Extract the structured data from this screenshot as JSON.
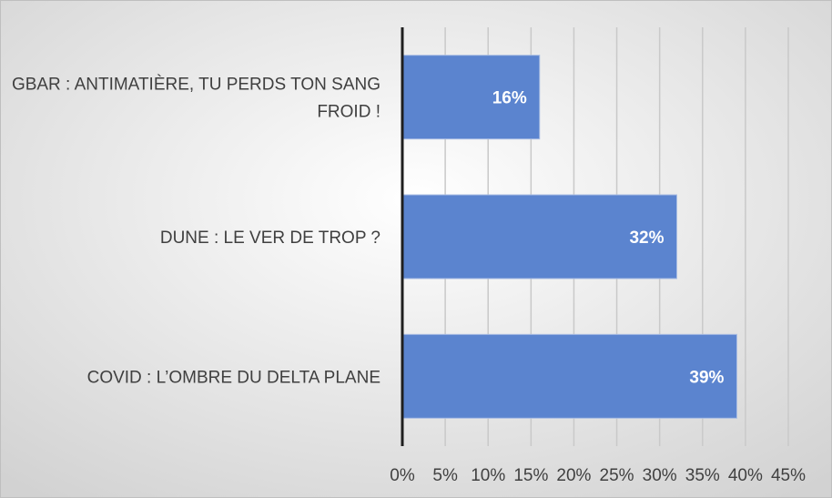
{
  "chart_data": {
    "type": "bar",
    "orientation": "horizontal",
    "categories": [
      "GBAR : ANTIMATIÈRE, TU PERDS TON SANG FROID !",
      "DUNE : LE VER DE TROP ?",
      "COVID : L’OMBRE DU DELTA PLANE"
    ],
    "category_lines": [
      [
        "GBAR : ANTIMATIÈRE, TU PERDS TON SANG",
        "FROID !"
      ],
      [
        "DUNE : LE VER DE TROP ?"
      ],
      [
        "COVID : L’OMBRE DU DELTA PLANE"
      ]
    ],
    "values": [
      16,
      32,
      39
    ],
    "data_labels": [
      "16%",
      "32%",
      "39%"
    ],
    "xlim": [
      0,
      45
    ],
    "x_ticks": [
      0,
      5,
      10,
      15,
      20,
      25,
      30,
      35,
      40,
      45
    ],
    "x_tick_labels": [
      "0%",
      "5%",
      "10%",
      "15%",
      "20%",
      "25%",
      "30%",
      "35%",
      "40%",
      "45%"
    ],
    "grid": true,
    "legend": false,
    "title": "",
    "xlabel": "",
    "ylabel": "",
    "colors": {
      "bar": "#5b84cf",
      "background_light": "#ffffff",
      "background_dark": "#d2d2d2"
    }
  }
}
